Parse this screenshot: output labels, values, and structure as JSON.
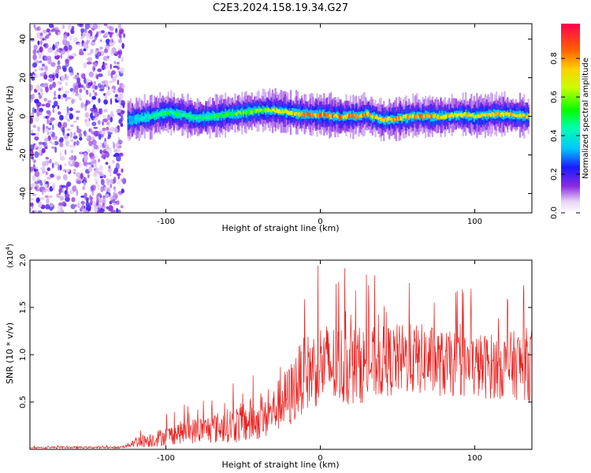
{
  "figure": {
    "title": "C2E3.2024.158.19.34.G27"
  },
  "chart_data": [
    {
      "type": "heatmap",
      "xlabel": "Height of straight line (km)",
      "ylabel": "Frequency (Hz)",
      "xlim": [
        -188,
        137
      ],
      "ylim": [
        -50,
        48
      ],
      "xticks": [
        -100,
        0,
        100
      ],
      "yticks": [
        -40,
        -20,
        0,
        20,
        40
      ],
      "colorbar": {
        "label": "Normalized spectral amplitude",
        "range": [
          0,
          0.98
        ],
        "ticks": [
          0.0,
          0.2,
          0.4,
          0.6,
          0.8
        ]
      },
      "noise_region": {
        "x": [
          -188,
          -127
        ],
        "y": [
          -50,
          48
        ]
      },
      "ridge": {
        "x": [
          -125,
          -110,
          -100,
          -90,
          -80,
          -70,
          -60,
          -50,
          -40,
          -30,
          -20,
          -10,
          0,
          10,
          20,
          30,
          40,
          50,
          60,
          70,
          80,
          90,
          100,
          110,
          120,
          135
        ],
        "freq": [
          -2,
          0,
          2,
          1,
          -1,
          0,
          1,
          2,
          3,
          3,
          2,
          1,
          1,
          0,
          0,
          1,
          -2,
          -1,
          0,
          0,
          0,
          1,
          0,
          1,
          1,
          0
        ],
        "amplitude": [
          0.3,
          0.45,
          0.5,
          0.45,
          0.5,
          0.5,
          0.55,
          0.6,
          0.65,
          0.7,
          0.75,
          0.8,
          0.85,
          0.85,
          0.85,
          0.8,
          0.75,
          0.8,
          0.8,
          0.8,
          0.75,
          0.75,
          0.7,
          0.75,
          0.75,
          0.75
        ]
      }
    },
    {
      "type": "line",
      "xlabel": "Height of straight line (km)",
      "ylabel": "SNR (10 * v/v)",
      "scale_label": "(x10",
      "scale_exp": "4",
      "scale_close": ")",
      "xlim": [
        -188,
        137
      ],
      "ylim": [
        0,
        2.0
      ],
      "xticks": [
        -100,
        0,
        100
      ],
      "yticks": [
        0.5,
        1.0,
        1.5,
        2.0
      ],
      "series": [
        {
          "color": "#e8201e",
          "x": [
            -188,
            -130,
            -125,
            -120,
            -110,
            -100,
            -90,
            -80,
            -70,
            -60,
            -50,
            -45,
            -40,
            -35,
            -30,
            -25,
            -20,
            -15,
            -10,
            -5,
            0,
            10,
            20,
            30,
            40,
            50,
            60,
            70,
            80,
            90,
            100,
            110,
            120,
            130,
            137
          ],
          "y": [
            0.02,
            0.02,
            0.04,
            0.08,
            0.1,
            0.14,
            0.18,
            0.2,
            0.22,
            0.25,
            0.28,
            0.3,
            0.3,
            0.32,
            0.42,
            0.5,
            0.55,
            0.7,
            0.8,
            0.85,
            0.9,
            0.88,
            0.88,
            0.9,
            0.92,
            0.95,
            0.95,
            0.95,
            0.9,
            0.9,
            0.88,
            0.88,
            0.88,
            0.9,
            0.9
          ],
          "spread": [
            0.01,
            0.01,
            0.02,
            0.06,
            0.08,
            0.1,
            0.12,
            0.14,
            0.16,
            0.18,
            0.22,
            0.25,
            0.2,
            0.2,
            0.24,
            0.3,
            0.35,
            0.38,
            0.4,
            0.42,
            0.45,
            0.45,
            0.42,
            0.4,
            0.38,
            0.38,
            0.38,
            0.38,
            0.35,
            0.35,
            0.35,
            0.35,
            0.35,
            0.38,
            0.4
          ]
        }
      ]
    }
  ]
}
